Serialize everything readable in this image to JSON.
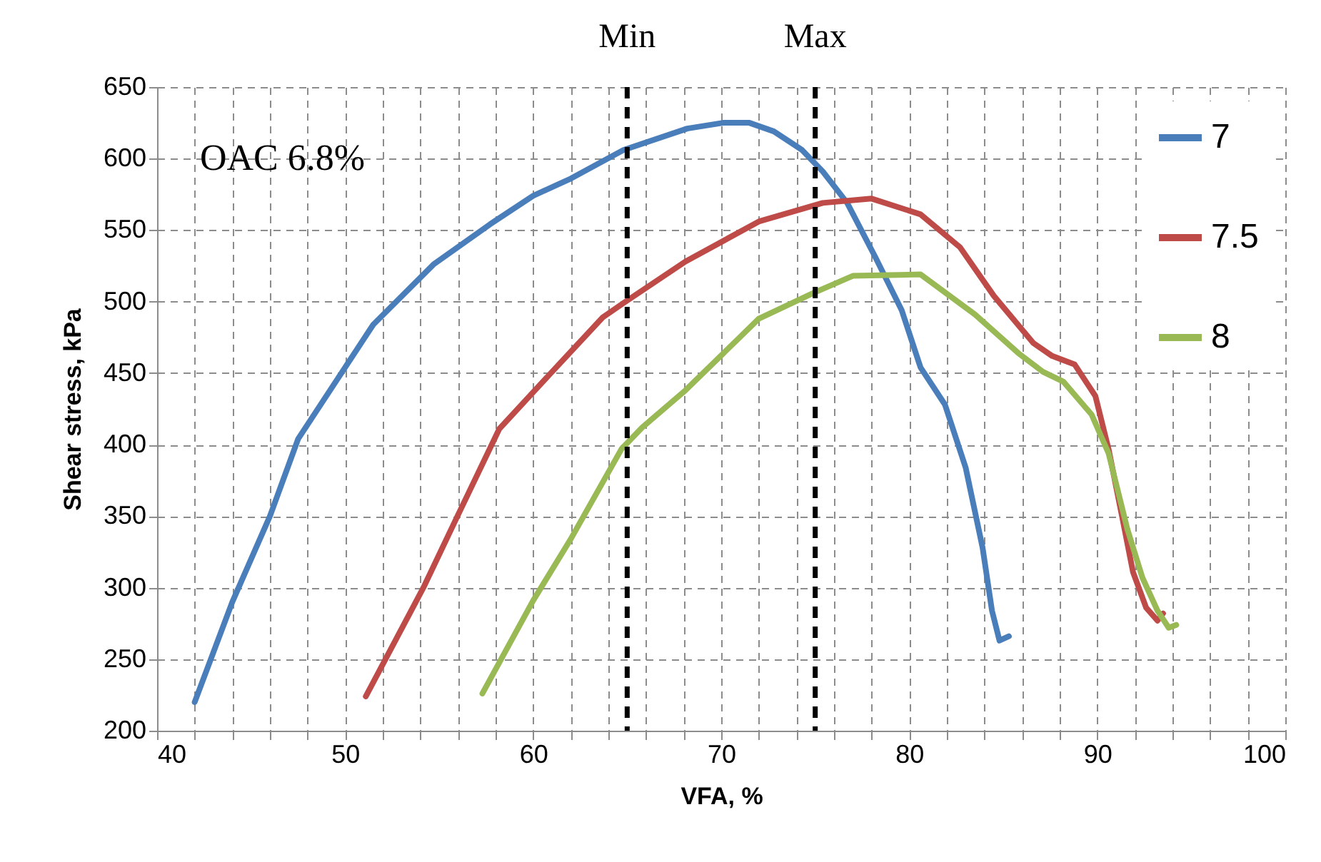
{
  "chart_data": {
    "type": "line",
    "xlabel": "VFA, %",
    "ylabel": "Shear stress, kPa",
    "annotations": [
      "OAC 6.8%"
    ],
    "xlim": [
      40,
      100
    ],
    "xticks": [
      40,
      {
        "value": 42,
        "label": null
      },
      {
        "value": 44,
        "label": null
      },
      {
        "value": 46,
        "label": null
      },
      {
        "value": 48,
        "label": null
      },
      50,
      {
        "value": 52,
        "label": null
      },
      {
        "value": 54,
        "label": null
      },
      {
        "value": 56,
        "label": null
      },
      {
        "value": 58,
        "label": null
      },
      60,
      {
        "value": 62,
        "label": null
      },
      {
        "value": 64,
        "label": null
      },
      {
        "value": 66,
        "label": null
      },
      {
        "value": 68,
        "label": null
      },
      70,
      {
        "value": 72,
        "label": null
      },
      {
        "value": 74,
        "label": null
      },
      {
        "value": 76,
        "label": null
      },
      {
        "value": 78,
        "label": null
      },
      80,
      {
        "value": 82,
        "label": null
      },
      {
        "value": 84,
        "label": null
      },
      {
        "value": 86,
        "label": null
      },
      {
        "value": 88,
        "label": null
      },
      90,
      {
        "value": 92,
        "label": null
      },
      {
        "value": 94,
        "label": null
      },
      {
        "value": 96,
        "label": null
      },
      {
        "value": 98,
        "label": null
      },
      100
    ],
    "ylim": [
      200,
      650
    ],
    "yticks": [
      200,
      250,
      300,
      350,
      400,
      450,
      500,
      550,
      600,
      650
    ],
    "grid": true,
    "legend": "top right",
    "line_style": "solid",
    "ref_lines": [
      {
        "axis": "x",
        "value": 65,
        "label": "Min",
        "color": "#000000",
        "line_style": "dashed"
      },
      {
        "axis": "x",
        "value": 75,
        "label": "Max",
        "color": "#000000",
        "line_style": "dashed"
      }
    ],
    "series": [
      {
        "name": "7",
        "color": "#4a7ebb",
        "x": [
          42,
          44,
          46,
          47.5,
          50,
          51.5,
          54.7,
          57.7,
          60,
          62,
          64.8,
          68.2,
          70.1,
          71.5,
          72.8,
          74.3,
          75.4,
          76.7,
          78.2,
          79.6,
          80.6,
          81.9,
          83,
          83.9,
          84.4,
          84.8,
          85.3
        ],
        "values": [
          220,
          290,
          350,
          404,
          454,
          484,
          526,
          554,
          574,
          586,
          606,
          621,
          625,
          625,
          619,
          606,
          591,
          569,
          531,
          494,
          454,
          428,
          384,
          328,
          284,
          263,
          266
        ]
      },
      {
        "name": "7.5",
        "color": "#be4b48",
        "x": [
          51.1,
          54.2,
          55.9,
          58.2,
          60.8,
          63.7,
          64.8,
          68.1,
          72,
          75.4,
          78,
          80.6,
          82.7,
          84.5,
          86.6,
          87.6,
          88.8,
          89.9,
          90.6,
          91.3,
          91.9,
          92.6,
          93.2,
          93.5
        ],
        "values": [
          224,
          301,
          348,
          411,
          448,
          489,
          499,
          528,
          556,
          569,
          572,
          561,
          538,
          504,
          471,
          462,
          456,
          434,
          397,
          351,
          311,
          286,
          277,
          282
        ]
      },
      {
        "name": "8",
        "color": "#98b954",
        "x": [
          57.3,
          60,
          62,
          64.7,
          65.8,
          68.1,
          72,
          74.9,
          77,
          80.6,
          83.5,
          85.8,
          87.1,
          88.2,
          89.7,
          90.6,
          91.6,
          92.4,
          93.2,
          93.8,
          94.2
        ],
        "values": [
          226,
          291,
          334,
          397,
          412,
          438,
          488,
          506,
          518,
          519,
          491,
          464,
          451,
          444,
          421,
          394,
          341,
          307,
          284,
          272,
          274
        ]
      }
    ]
  }
}
